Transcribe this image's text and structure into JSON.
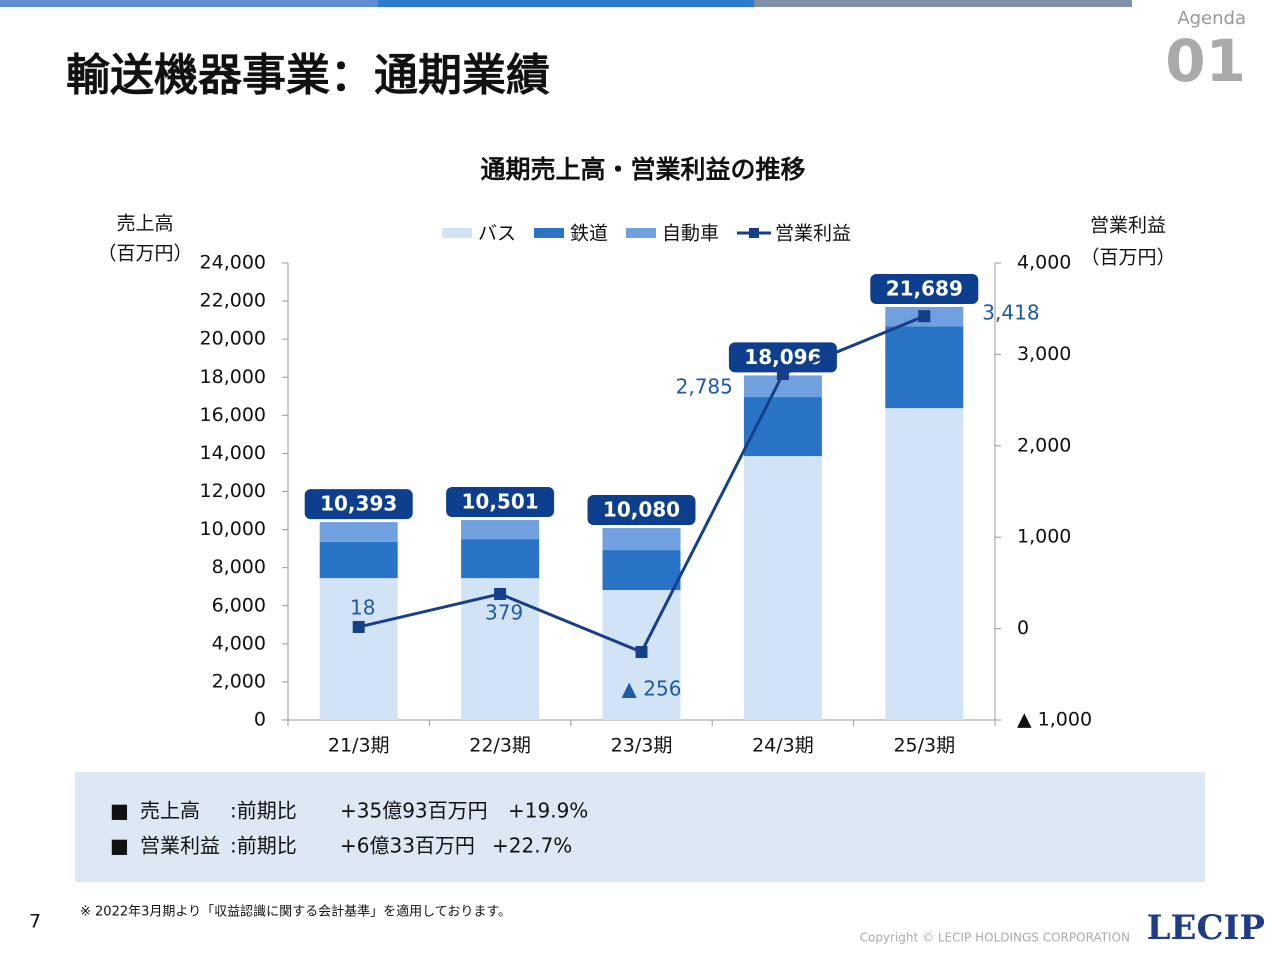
{
  "header": {
    "title": "輸送機器事業：通期業績",
    "agenda": "Agenda",
    "agenda_number": "01"
  },
  "chart_data": {
    "type": "bar",
    "title": "通期売上高・営業利益の推移",
    "y_label": "売上高",
    "y_unit": "（百万円）",
    "y2_label": "営業利益",
    "y2_unit": "（百万円）",
    "categories": [
      "21/3期",
      "22/3期",
      "23/3期",
      "24/3期",
      "25/3期"
    ],
    "series": [
      {
        "name": "バス",
        "color": "#d3e3f6",
        "values": [
          7450,
          7450,
          6825,
          13860,
          16380
        ]
      },
      {
        "name": "鉄道",
        "color": "#2a74c8",
        "values": [
          1900,
          2050,
          2100,
          3100,
          4300
        ]
      },
      {
        "name": "自動車",
        "color": "#70a0e0",
        "values": [
          1043,
          1001,
          1155,
          1136,
          1009
        ]
      },
      {
        "name": "営業利益",
        "type": "line",
        "axis": "y2",
        "color": "#163f8a",
        "values": [
          18,
          379,
          -256,
          2785,
          3418
        ],
        "value_labels": [
          "18",
          "379",
          "▲ 256",
          "2,785",
          "3,418"
        ]
      }
    ],
    "total_labels": [
      "10,393",
      "10,501",
      "10,080",
      "18,096",
      "21,689"
    ],
    "ylim": [
      0,
      24000
    ],
    "yticks": [
      0,
      {
        "value": 2000,
        "label": "2,000"
      },
      {
        "value": 4000,
        "label": "4,000"
      },
      {
        "value": 6000,
        "label": "6,000"
      },
      {
        "value": 8000,
        "label": "8,000"
      },
      {
        "value": 10000,
        "label": "10,000"
      },
      {
        "value": 12000,
        "label": "12,000"
      },
      {
        "value": 14000,
        "label": "14,000"
      },
      {
        "value": 16000,
        "label": "16,000"
      },
      {
        "value": 18000,
        "label": "18,000"
      },
      {
        "value": 20000,
        "label": "20,000"
      },
      {
        "value": 22000,
        "label": "22,000"
      },
      {
        "value": 24000,
        "label": "24,000"
      }
    ],
    "y2lim": [
      -1000,
      4000
    ],
    "y2ticks": [
      {
        "value": -1000,
        "label": "▲ 1,000"
      },
      0,
      {
        "value": 1000,
        "label": "1,000"
      },
      {
        "value": 2000,
        "label": "2,000"
      },
      {
        "value": 3000,
        "label": "3,000"
      },
      {
        "value": 4000,
        "label": "4,000"
      }
    ],
    "grid": false
  },
  "summary": {
    "rows": [
      [
        "■",
        "売上高",
        ":前期比",
        "+35億93百万円",
        "+19.9%"
      ],
      [
        "■",
        "営業利益",
        ":前期比",
        "+6億33百万円",
        "+22.7%"
      ]
    ]
  },
  "footnote": "※ 2022年3月期より「収益認識に関する会計基準」を適用しております。",
  "page_number": "7",
  "copyright": "Copyright © LECIP HOLDINGS CORPORATION",
  "logo": "LECIP"
}
